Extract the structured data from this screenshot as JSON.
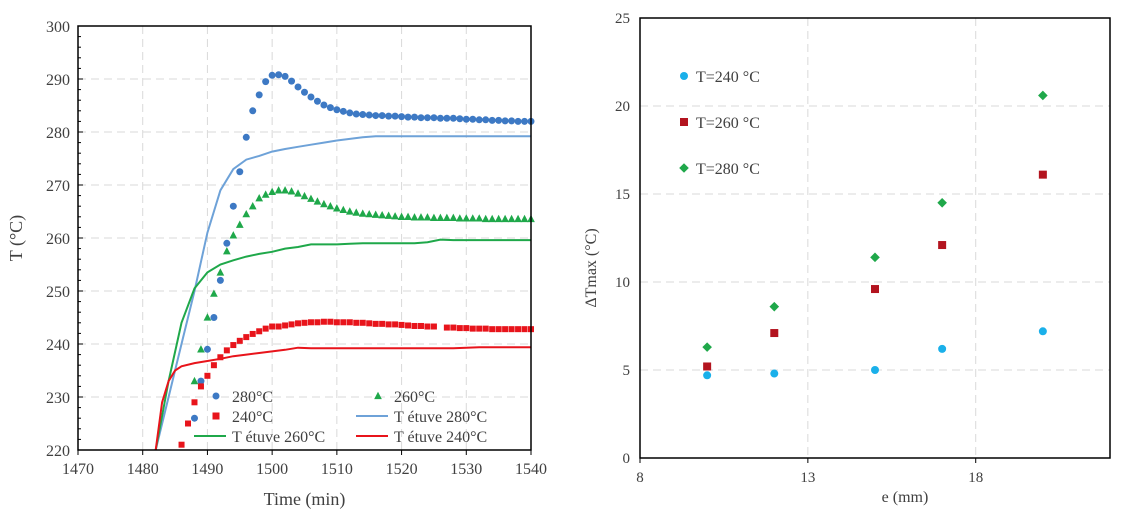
{
  "chart_data": [
    {
      "type": "scatter",
      "xlabel": "Time (min)",
      "ylabel": "T (°C)",
      "xlim": [
        1470,
        1540
      ],
      "ylim": [
        220,
        300
      ],
      "xticks": [
        1470,
        1480,
        1490,
        1500,
        1510,
        1520,
        1530,
        1540
      ],
      "yticks": [
        220,
        230,
        240,
        250,
        260,
        270,
        280,
        290,
        300
      ],
      "grid": true,
      "legend_position": "bottom",
      "colors": {
        "blue_marker": "#3d79c4",
        "green": "#1fa84a",
        "red": "#e8141b",
        "blue_line": "#6ea2d8"
      },
      "series": [
        {
          "name": "280°C",
          "kind": "marker",
          "marker": "circle",
          "color": "#3d79c4",
          "x": [
            1488,
            1489,
            1490,
            1491,
            1492,
            1493,
            1494,
            1495,
            1496,
            1497,
            1498,
            1499,
            1500,
            1501,
            1502,
            1503,
            1504,
            1505,
            1506,
            1507,
            1508,
            1509,
            1510,
            1511,
            1512,
            1513,
            1514,
            1515,
            1516,
            1517,
            1518,
            1519,
            1520,
            1521,
            1522,
            1523,
            1524,
            1525,
            1526,
            1527,
            1528,
            1529,
            1530,
            1531,
            1532,
            1533,
            1534,
            1535,
            1536,
            1537,
            1538,
            1539,
            1540
          ],
          "y": [
            226,
            233,
            239,
            245,
            252,
            259,
            266,
            272.5,
            279,
            284,
            287,
            289.5,
            290.7,
            290.8,
            290.5,
            289.6,
            288.5,
            287.5,
            286.6,
            285.8,
            285.1,
            284.6,
            284.2,
            283.9,
            283.6,
            283.4,
            283.3,
            283.2,
            283.1,
            283.1,
            283.0,
            283.0,
            282.9,
            282.8,
            282.8,
            282.7,
            282.7,
            282.7,
            282.6,
            282.6,
            282.6,
            282.5,
            282.4,
            282.4,
            282.3,
            282.3,
            282.2,
            282.2,
            282.1,
            282.1,
            282.0,
            282.0,
            282.0
          ]
        },
        {
          "name": "260°C",
          "kind": "marker",
          "marker": "triangle",
          "color": "#1fa84a",
          "x": [
            1488,
            1489,
            1490,
            1491,
            1492,
            1493,
            1494,
            1495,
            1496,
            1497,
            1498,
            1499,
            1500,
            1501,
            1502,
            1503,
            1504,
            1505,
            1506,
            1507,
            1508,
            1509,
            1510,
            1511,
            1512,
            1513,
            1514,
            1515,
            1516,
            1517,
            1518,
            1519,
            1520,
            1521,
            1522,
            1523,
            1524,
            1525,
            1526,
            1527,
            1528,
            1529,
            1530,
            1531,
            1532,
            1533,
            1534,
            1535,
            1536,
            1537,
            1538,
            1539,
            1540
          ],
          "y": [
            233,
            239,
            245,
            249.5,
            253.5,
            257.5,
            260.5,
            262.5,
            264.5,
            266,
            267.5,
            268.2,
            268.7,
            269.0,
            269.0,
            268.8,
            268.4,
            267.9,
            267.4,
            266.9,
            266.4,
            266.0,
            265.6,
            265.3,
            265.0,
            264.8,
            264.6,
            264.5,
            264.4,
            264.3,
            264.2,
            264.1,
            264.0,
            264.0,
            263.9,
            263.9,
            263.9,
            263.8,
            263.8,
            263.8,
            263.8,
            263.7,
            263.7,
            263.7,
            263.7,
            263.6,
            263.6,
            263.6,
            263.6,
            263.6,
            263.6,
            263.6,
            263.6
          ]
        },
        {
          "name": "240°C",
          "kind": "marker",
          "marker": "square",
          "color": "#e8141b",
          "x": [
            1486,
            1487,
            1488,
            1489,
            1490,
            1491,
            1492,
            1493,
            1494,
            1495,
            1496,
            1497,
            1498,
            1499,
            1500,
            1501,
            1502,
            1503,
            1504,
            1505,
            1506,
            1507,
            1508,
            1509,
            1510,
            1511,
            1512,
            1513,
            1514,
            1515,
            1516,
            1517,
            1518,
            1519,
            1520,
            1521,
            1522,
            1523,
            1524,
            1525,
            1527,
            1528,
            1529,
            1530,
            1531,
            1532,
            1533,
            1534,
            1535,
            1536,
            1537,
            1538,
            1539,
            1540
          ],
          "y": [
            221,
            225,
            229,
            232,
            234,
            236,
            237.5,
            238.8,
            239.8,
            240.6,
            241.3,
            241.9,
            242.4,
            242.9,
            243.3,
            243.3,
            243.5,
            243.7,
            243.9,
            244.0,
            244.1,
            244.1,
            244.2,
            244.2,
            244.1,
            244.1,
            244.1,
            244.0,
            244.0,
            243.9,
            243.8,
            243.8,
            243.7,
            243.7,
            243.6,
            243.5,
            243.4,
            243.4,
            243.3,
            243.3,
            243.1,
            243.1,
            243.0,
            243.0,
            242.9,
            242.9,
            242.9,
            242.8,
            242.8,
            242.8,
            242.8,
            242.8,
            242.8,
            242.8
          ]
        },
        {
          "name": "T étuve 280°C",
          "kind": "line",
          "color": "#6ea2d8",
          "x": [
            1482,
            1484,
            1486,
            1488,
            1490,
            1492,
            1494,
            1496,
            1498,
            1500,
            1502,
            1504,
            1506,
            1508,
            1510,
            1512,
            1514,
            1516,
            1518,
            1520,
            1522,
            1524,
            1526,
            1528,
            1530,
            1532,
            1534,
            1536,
            1538,
            1540
          ],
          "y": [
            220,
            230,
            240,
            250,
            261,
            269,
            273,
            274.8,
            275.5,
            276.3,
            276.8,
            277.2,
            277.6,
            278.0,
            278.4,
            278.7,
            279.0,
            279.2,
            279.2,
            279.2,
            279.2,
            279.2,
            279.2,
            279.2,
            279.2,
            279.2,
            279.2,
            279.2,
            279.2,
            279.2
          ]
        },
        {
          "name": "T étuve 260°C",
          "kind": "line",
          "color": "#1fa84a",
          "x": [
            1482,
            1484,
            1486,
            1488,
            1490,
            1492,
            1494,
            1496,
            1498,
            1500,
            1502,
            1504,
            1506,
            1508,
            1510,
            1512,
            1514,
            1516,
            1518,
            1520,
            1522,
            1524,
            1526,
            1528,
            1530,
            1532,
            1534,
            1536,
            1538,
            1540
          ],
          "y": [
            220,
            233,
            244,
            250.5,
            253.5,
            255.0,
            255.8,
            256.5,
            257.0,
            257.4,
            258.0,
            258.3,
            258.8,
            258.8,
            258.8,
            258.9,
            259.0,
            259.0,
            259.0,
            259.0,
            259.0,
            259.2,
            259.7,
            259.6,
            259.6,
            259.6,
            259.6,
            259.6,
            259.6,
            259.6
          ]
        },
        {
          "name": "T étuve 240°C",
          "kind": "line",
          "color": "#e8141b",
          "x": [
            1482,
            1483,
            1484,
            1485,
            1486,
            1488,
            1490,
            1492,
            1494,
            1496,
            1498,
            1500,
            1502,
            1504,
            1506,
            1508,
            1510,
            1512,
            1514,
            1516,
            1518,
            1520,
            1522,
            1524,
            1526,
            1528,
            1530,
            1532,
            1534,
            1536,
            1538,
            1540
          ],
          "y": [
            220,
            229,
            233,
            235,
            235.8,
            236.4,
            236.8,
            237.2,
            237.7,
            238.0,
            238.3,
            238.6,
            238.9,
            239.3,
            239.2,
            239.2,
            239.2,
            239.2,
            239.2,
            239.2,
            239.2,
            239.2,
            239.2,
            239.2,
            239.2,
            239.2,
            239.3,
            239.4,
            239.4,
            239.4,
            239.4,
            239.4
          ]
        }
      ]
    },
    {
      "type": "scatter",
      "xlabel": "e (mm)",
      "ylabel": "ΔTmax (°C)",
      "xlim": [
        8,
        22
      ],
      "ylim": [
        0,
        25
      ],
      "xticks": [
        8,
        13,
        18
      ],
      "yticks": [
        0,
        5,
        10,
        15,
        20,
        25
      ],
      "grid": true,
      "legend_position": "top-left",
      "series": [
        {
          "name": "T=240 °C",
          "marker": "circle",
          "color": "#1ab0ea",
          "x": [
            10,
            12,
            15,
            17,
            20
          ],
          "y": [
            4.7,
            4.8,
            5.0,
            6.2,
            7.2
          ]
        },
        {
          "name": "T=260 °C",
          "marker": "square",
          "color": "#b3141f",
          "x": [
            10,
            12,
            15,
            17,
            20
          ],
          "y": [
            5.2,
            7.1,
            9.6,
            12.1,
            16.1
          ]
        },
        {
          "name": "T=280 °C",
          "marker": "diamond",
          "color": "#1fa84a",
          "x": [
            10,
            12,
            15,
            17,
            20
          ],
          "y": [
            6.3,
            8.6,
            11.4,
            14.5,
            20.6
          ]
        }
      ]
    }
  ]
}
